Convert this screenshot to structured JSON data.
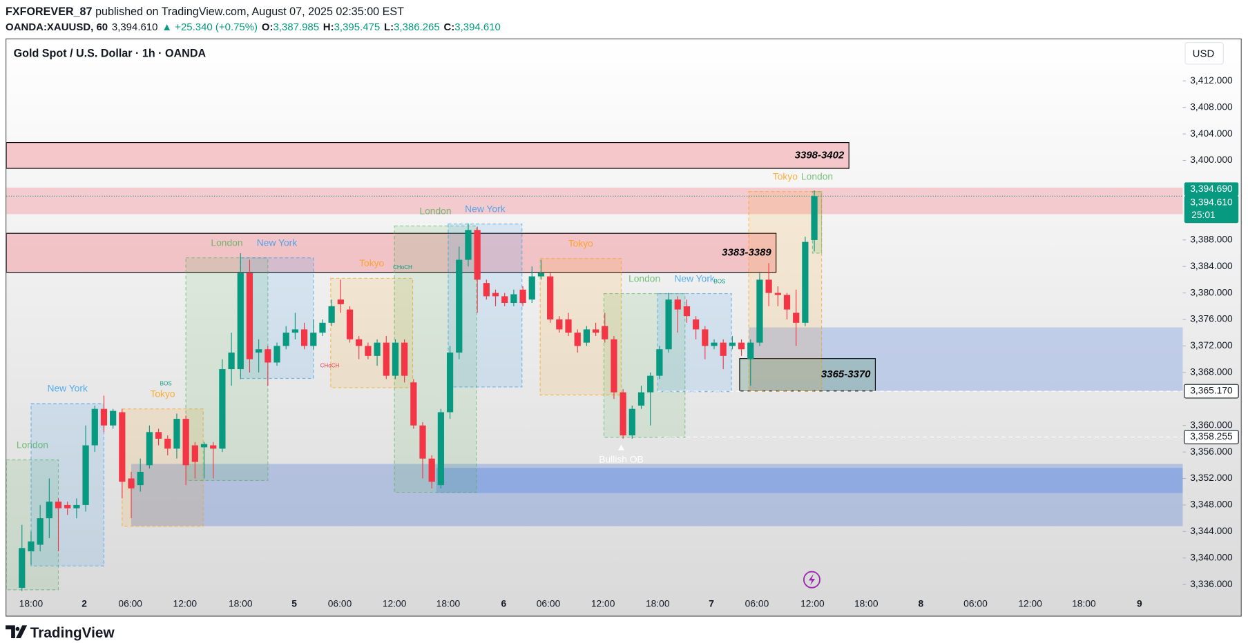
{
  "header": {
    "author": "FXFOREVER_87",
    "published": "published on TradingView.com, August 07, 2025 02:35:00 EST",
    "symbol": "OANDA:XAUUSD, 60",
    "last": "3,394.610",
    "change": "▲ +25.340 (+0.75%)",
    "ohlc": [
      {
        "key": "O:",
        "value": "3,387.985"
      },
      {
        "key": "H:",
        "value": "3,395.475"
      },
      {
        "key": "L:",
        "value": "3,386.265"
      },
      {
        "key": "C:",
        "value": "3,394.610"
      }
    ]
  },
  "chart_data": {
    "type": "candlestick",
    "title": "Gold Spot / U.S. Dollar · 1h · OANDA",
    "currency": "USD",
    "grid": false,
    "up_color": "#089981",
    "down_color": "#f23645",
    "xlim": [
      -1.71,
      127.45
    ],
    "ylim": [
      3334.67,
      3418.04
    ],
    "xticks": [
      {
        "value": 1.0,
        "label": "18:00"
      },
      {
        "value": 6.85,
        "label": "2"
      },
      {
        "value": 11.9,
        "label": "06:00"
      },
      {
        "value": 17.9,
        "label": "12:00"
      },
      {
        "value": 24.0,
        "label": "18:00"
      },
      {
        "value": 29.9,
        "label": "5"
      },
      {
        "value": 34.9,
        "label": "06:00"
      },
      {
        "value": 40.9,
        "label": "12:00"
      },
      {
        "value": 46.8,
        "label": "18:00"
      },
      {
        "value": 52.9,
        "label": "6"
      },
      {
        "value": 57.8,
        "label": "06:00"
      },
      {
        "value": 63.8,
        "label": "12:00"
      },
      {
        "value": 69.8,
        "label": "18:00"
      },
      {
        "value": 75.7,
        "label": "7"
      },
      {
        "value": 80.7,
        "label": "06:00"
      },
      {
        "value": 86.8,
        "label": "12:00"
      },
      {
        "value": 92.7,
        "label": "18:00"
      },
      {
        "value": 98.7,
        "label": "8"
      },
      {
        "value": 104.7,
        "label": "06:00"
      },
      {
        "value": 110.7,
        "label": "12:00"
      },
      {
        "value": 116.6,
        "label": "18:00"
      },
      {
        "value": 122.7,
        "label": "9"
      }
    ],
    "yticks": [
      {
        "value": 3412,
        "label": "3,412.000"
      },
      {
        "value": 3408,
        "label": "3,408.000"
      },
      {
        "value": 3404,
        "label": "3,404.000"
      },
      {
        "value": 3400,
        "label": "3,400.000"
      },
      {
        "value": 3388,
        "label": "3,388.000"
      },
      {
        "value": 3384,
        "label": "3,384.000"
      },
      {
        "value": 3380,
        "label": "3,380.000"
      },
      {
        "value": 3376,
        "label": "3,376.000"
      },
      {
        "value": 3372,
        "label": "3,372.000"
      },
      {
        "value": 3368,
        "label": "3,368.000"
      },
      {
        "value": 3360,
        "label": "3,360.000"
      },
      {
        "value": 3356,
        "label": "3,356.000"
      },
      {
        "value": 3352,
        "label": "3,352.000"
      },
      {
        "value": 3348,
        "label": "3,348.000"
      },
      {
        "value": 3344,
        "label": "3,344.000"
      },
      {
        "value": 3340,
        "label": "3,340.000"
      },
      {
        "value": 3336,
        "label": "3,336.000"
      }
    ],
    "open": [
      3335.5,
      3341,
      3342,
      3346,
      3348.5,
      3348,
      3347.5,
      3348,
      3357,
      3362.5,
      3360,
      3362,
      3352,
      3351,
      3354,
      3359,
      3358,
      3356.5,
      3361,
      3357,
      3356.7,
      3357,
      3356.5,
      3368.5,
      3368.5,
      3383,
      3371,
      3371.5,
      3369.5,
      3372,
      3374,
      3374.5,
      3372,
      3374,
      3375.5,
      3379,
      3377.5,
      3373,
      3372,
      3370.5,
      3372.5,
      3367.5,
      3372.5,
      3366.5,
      3360,
      3355,
      3351,
      3362,
      3371,
      3385,
      3389.5,
      3381.5,
      3380,
      3379.5,
      3378.5,
      3380.5,
      3379,
      3382.5,
      3382.5,
      3376,
      3376,
      3374,
      3372.5,
      3374.5,
      3375,
      3373,
      3365,
      3358.5,
      3363,
      3365,
      3367.5,
      3371.5,
      3379,
      3378,
      3376,
      3374.5,
      3372,
      3372.5,
      3372,
      3372.5,
      3370,
      3372.5,
      3382,
      3380,
      3379.7,
      3377,
      3375.5,
      3387.985
    ],
    "high": [
      3345,
      3344,
      3348,
      3352,
      3349,
      3348.5,
      3349,
      3360,
      3363,
      3364.5,
      3362.5,
      3362.5,
      3353,
      3355,
      3360,
      3359.5,
      3358.5,
      3361.8,
      3361.5,
      3357.5,
      3357.5,
      3357.5,
      3370,
      3374,
      3386,
      3385,
      3373,
      3372,
      3372.5,
      3375,
      3377,
      3375.5,
      3376,
      3376,
      3379,
      3382,
      3378,
      3373.5,
      3372.5,
      3373,
      3373.5,
      3373,
      3373,
      3367,
      3360.5,
      3355.5,
      3362.5,
      3372,
      3387,
      3390.5,
      3390,
      3382,
      3380.5,
      3380,
      3380.5,
      3381,
      3384,
      3385,
      3383,
      3376.5,
      3377,
      3374.5,
      3375,
      3375.5,
      3377,
      3373.5,
      3365.5,
      3363,
      3366,
      3368,
      3372,
      3380,
      3379.5,
      3379,
      3376.5,
      3375,
      3373,
      3373,
      3373.5,
      3373,
      3373,
      3383,
      3384.5,
      3381,
      3380,
      3380.5,
      3388.5,
      3395.475
    ],
    "low": [
      3335,
      3339,
      3341,
      3343,
      3341,
      3346.5,
      3346,
      3347,
      3356,
      3359,
      3359.5,
      3349,
      3346,
      3350,
      3353.5,
      3357,
      3355.5,
      3355,
      3351,
      3352,
      3352,
      3352,
      3356,
      3366,
      3367,
      3368,
      3368,
      3366,
      3369,
      3371.5,
      3373,
      3371.5,
      3371.5,
      3373.5,
      3375,
      3377,
      3372.5,
      3370,
      3370,
      3369,
      3367,
      3367,
      3366.5,
      3359.5,
      3352,
      3350.5,
      3350.5,
      3361,
      3370,
      3384,
      3377,
      3379,
      3378,
      3378,
      3378,
      3378,
      3378.5,
      3382,
      3375.5,
      3374,
      3373.5,
      3371,
      3372,
      3373.5,
      3372.5,
      3364,
      3358,
      3358,
      3362.5,
      3360,
      3367,
      3371,
      3374,
      3375.5,
      3373,
      3370,
      3371.5,
      3368.5,
      3371.5,
      3370.5,
      3366,
      3372,
      3378,
      3378,
      3376,
      3372,
      3375,
      3386.265
    ],
    "close": [
      3341.5,
      3342.5,
      3346,
      3348.5,
      3347.5,
      3347.5,
      3348,
      3357,
      3362.5,
      3360,
      3362.2,
      3351.5,
      3350.5,
      3353,
      3359,
      3358,
      3356.5,
      3361,
      3354,
      3354.5,
      3357.2,
      3356.5,
      3368.5,
      3371,
      3383,
      3370,
      3371.5,
      3369.5,
      3372,
      3374,
      3374.5,
      3372,
      3374,
      3375.5,
      3378,
      3378.3,
      3373,
      3372,
      3370.5,
      3372.5,
      3367.5,
      3372.5,
      3367.5,
      3360,
      3355,
      3351.5,
      3362,
      3371,
      3385,
      3389.5,
      3382,
      3379.5,
      3379.5,
      3378.5,
      3379.8,
      3378.5,
      3382.5,
      3383,
      3376,
      3374.5,
      3374,
      3372,
      3374.5,
      3374,
      3373,
      3365,
      3358.5,
      3362.5,
      3365,
      3367.5,
      3371.5,
      3379,
      3377.5,
      3376.5,
      3374.5,
      3372,
      3372.5,
      3370.5,
      3372.5,
      3371.5,
      3372.5,
      3382,
      3380,
      3379.7,
      3377.5,
      3375.5,
      3387.7,
      3394.61
    ],
    "zones": [
      {
        "x": [
          12.0,
          127.45
        ],
        "y": [
          3344.8,
          3354.2
        ],
        "color": "#6f8fd6"
      },
      {
        "x": [
          45.5,
          127.45
        ],
        "y": [
          3349.8,
          3353.6
        ],
        "color": "#5b8ae8"
      },
      {
        "x": [
          79.8,
          127.45
        ],
        "y": [
          3365.2,
          3374.8
        ],
        "color": "#7f9fe6"
      },
      {
        "x": [
          -1.71,
          127.45
        ],
        "y": [
          3391.9,
          3395.9
        ],
        "color": "#f28b95"
      },
      {
        "x": [
          -1.71,
          90.8
        ],
        "y": [
          3398.8,
          3402.7
        ],
        "color": "#f28b95",
        "label": "3398-3402"
      },
      {
        "x": [
          -1.71,
          82.8
        ],
        "y": [
          3383.1,
          3389.0
        ],
        "color": "#f28b95",
        "label": "3383-3389"
      },
      {
        "x": [
          78.8,
          93.7
        ],
        "y": [
          3365.2,
          3370.1
        ],
        "color": "#7fa99a",
        "label": "3365-3370"
      }
    ],
    "sessions": [
      {
        "label": "London",
        "x": [
          -1.7,
          4.0
        ],
        "y": [
          3335.2,
          3354.8
        ],
        "color": "#4caf50"
      },
      {
        "label": "New York",
        "x": [
          1.0,
          9.0
        ],
        "y": [
          3338.8,
          3363.3
        ],
        "color": "#2196f3"
      },
      {
        "label": "Tokyo",
        "x": [
          11.0,
          19.9
        ],
        "y": [
          3344.8,
          3362.5
        ],
        "color": "#ff9800"
      },
      {
        "label": "London",
        "x": [
          18.0,
          27.0
        ],
        "y": [
          3351.7,
          3385.3
        ],
        "color": "#4caf50"
      },
      {
        "label": "New York",
        "x": [
          24.0,
          32.0
        ],
        "y": [
          3367.1,
          3385.3
        ],
        "color": "#2196f3"
      },
      {
        "label": "Tokyo",
        "x": [
          33.9,
          42.9
        ],
        "y": [
          3365.7,
          3382.2
        ],
        "color": "#ff9800"
      },
      {
        "label": "London",
        "x": [
          40.9,
          49.9
        ],
        "y": [
          3349.9,
          3390.1
        ],
        "color": "#4caf50"
      },
      {
        "label": "New York",
        "x": [
          46.8,
          54.9
        ],
        "y": [
          3365.8,
          3390.4
        ],
        "color": "#2196f3"
      },
      {
        "label": "Tokyo",
        "x": [
          56.9,
          65.8
        ],
        "y": [
          3364.6,
          3385.2
        ],
        "color": "#ff9800"
      },
      {
        "label": "London",
        "x": [
          63.9,
          72.8
        ],
        "y": [
          3358.2,
          3379.9
        ],
        "color": "#4caf50"
      },
      {
        "label": "New York",
        "x": [
          69.8,
          77.9
        ],
        "y": [
          3365.1,
          3379.9
        ],
        "color": "#2196f3"
      },
      {
        "label": "Tokyo",
        "x": [
          79.8,
          87.8
        ],
        "y": [
          3365.2,
          3395.3
        ],
        "color": "#ff9800"
      },
      {
        "label": "London",
        "x": [
          86.8,
          87.8
        ],
        "y": [
          3386.0,
          3395.3
        ],
        "color": "#4caf50"
      }
    ],
    "markers": [
      {
        "text": "BOS",
        "x": 15.8,
        "y": 3366.3,
        "color": "#089981"
      },
      {
        "text": "CHoCH",
        "x": 41.8,
        "y": 3383.8,
        "color": "#089981"
      },
      {
        "text": "CHoCH",
        "x": 33.8,
        "y": 3369.0,
        "color": "#f23645"
      },
      {
        "text": "BOS",
        "x": 76.6,
        "y": 3381.7,
        "color": "#089981"
      },
      {
        "text": "Bullish OB",
        "x": 65.8,
        "y": 3354.8,
        "color": "#ffffff"
      }
    ],
    "price_labels": [
      {
        "value": 3394.69,
        "label": "3,394.690",
        "color": "#089981"
      },
      {
        "value": 3394.61,
        "label": "3,394.610",
        "sub": "25:01",
        "color": "#089981"
      },
      {
        "value": 3365.17,
        "label": "3,365.170",
        "color": "#ffffff"
      },
      {
        "value": 3358.255,
        "label": "3,358.255",
        "color": "#ffffff"
      }
    ]
  },
  "footer": {
    "brand": "TradingView"
  }
}
